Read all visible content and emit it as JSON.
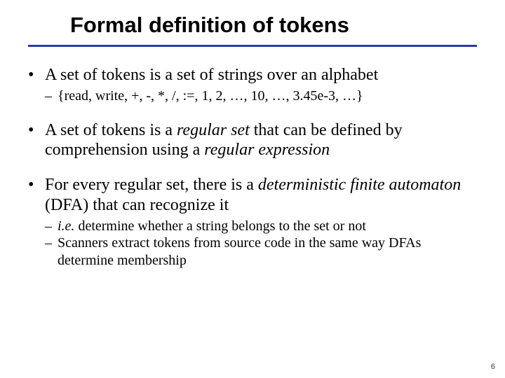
{
  "title": "Formal definition of tokens",
  "rule_color": "#2b3ca0",
  "bullets": [
    {
      "text": "A set of tokens is a set of strings over an alphabet",
      "sub": [
        "{read, write, +, -, *, /, :=, 1, 2, …, 10, …, 3.45e-3, …}"
      ]
    },
    {
      "html": "A set of tokens is a <em class='it'>regular set</em> that can be defined by comprehension using a <em class='it'>regular expression</em>",
      "sub": []
    },
    {
      "html": "For every regular set, there is a <em class='it'>deterministic finite automaton</em> (DFA) that can recognize it",
      "sub_html": [
        "<em class='it'>i.e.</em> determine whether a string belongs to the set or not",
        "Scanners extract tokens from source code in the same way DFAs determine membership"
      ]
    }
  ],
  "page_number": "6"
}
